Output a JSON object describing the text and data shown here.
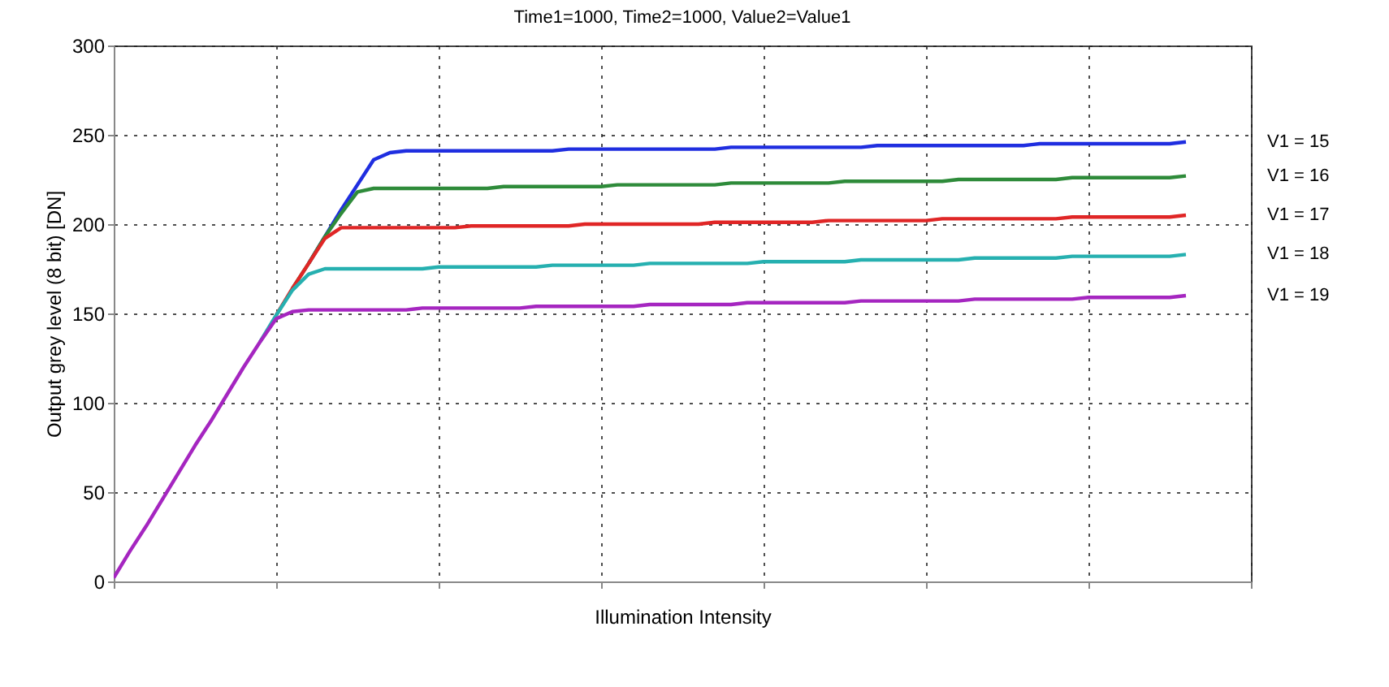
{
  "chart_data": {
    "type": "line",
    "title": "Time1=1000, Time2=1000, Value2=Value1",
    "xlabel": "Illumination Intensity",
    "ylabel": "Output grey level (8 bit) [DN]",
    "categories": [
      null,
      null,
      null,
      null,
      null,
      null,
      null,
      null,
      null,
      null,
      null,
      null,
      null,
      null,
      null,
      null,
      null,
      null,
      null,
      null,
      null,
      null,
      null,
      null,
      null,
      null,
      null,
      null,
      null,
      null,
      null,
      null,
      null,
      null,
      null,
      null,
      null,
      null,
      null,
      null,
      null,
      null,
      null,
      null,
      null,
      null,
      null,
      null,
      null,
      null,
      null,
      null,
      null,
      null,
      null,
      null,
      null,
      null,
      null,
      null,
      null,
      null,
      null,
      null,
      null,
      null,
      null,
      null,
      null,
      null,
      null
    ],
    "series": [
      {
        "name": "V1 = 15",
        "color": "#1f2ee0",
        "values": [
          null,
          null,
          null,
          null,
          null,
          null,
          null,
          null,
          null,
          null,
          null,
          null,
          178,
          193,
          208,
          222,
          236,
          240,
          241,
          241,
          241,
          241,
          241,
          241,
          241,
          241,
          241,
          241,
          242,
          242,
          242,
          242,
          242,
          242,
          242,
          242,
          242,
          242,
          243,
          243,
          243,
          243,
          243,
          243,
          243,
          243,
          243,
          244,
          244,
          244,
          244,
          244,
          244,
          244,
          244,
          244,
          244,
          245,
          245,
          245,
          245,
          245,
          245,
          245,
          245,
          245,
          246,
          null,
          null,
          null,
          null
        ]
      },
      {
        "name": "V1 = 16",
        "color": "#2e8b3a",
        "values": [
          null,
          null,
          null,
          null,
          null,
          null,
          null,
          null,
          null,
          null,
          null,
          164,
          178,
          193,
          206,
          218,
          220,
          220,
          220,
          220,
          220,
          220,
          220,
          220,
          221,
          221,
          221,
          221,
          221,
          221,
          221,
          222,
          222,
          222,
          222,
          222,
          222,
          222,
          223,
          223,
          223,
          223,
          223,
          223,
          223,
          224,
          224,
          224,
          224,
          224,
          224,
          224,
          225,
          225,
          225,
          225,
          225,
          225,
          225,
          226,
          226,
          226,
          226,
          226,
          226,
          226,
          227,
          null,
          null,
          null,
          null
        ]
      },
      {
        "name": "V1 = 17",
        "color": "#e02626",
        "values": [
          null,
          null,
          null,
          null,
          null,
          null,
          null,
          null,
          null,
          null,
          149,
          164,
          178,
          192,
          198,
          198,
          198,
          198,
          198,
          198,
          198,
          198,
          199,
          199,
          199,
          199,
          199,
          199,
          199,
          200,
          200,
          200,
          200,
          200,
          200,
          200,
          200,
          201,
          201,
          201,
          201,
          201,
          201,
          201,
          202,
          202,
          202,
          202,
          202,
          202,
          202,
          203,
          203,
          203,
          203,
          203,
          203,
          203,
          203,
          204,
          204,
          204,
          204,
          204,
          204,
          204,
          205,
          null,
          null,
          null,
          null
        ]
      },
      {
        "name": "V1 = 18",
        "color": "#26b0b0",
        "values": [
          null,
          null,
          null,
          null,
          null,
          null,
          null,
          null,
          null,
          134,
          149,
          163,
          172,
          175,
          175,
          175,
          175,
          175,
          175,
          175,
          176,
          176,
          176,
          176,
          176,
          176,
          176,
          177,
          177,
          177,
          177,
          177,
          177,
          178,
          178,
          178,
          178,
          178,
          178,
          178,
          179,
          179,
          179,
          179,
          179,
          179,
          180,
          180,
          180,
          180,
          180,
          180,
          180,
          181,
          181,
          181,
          181,
          181,
          181,
          182,
          182,
          182,
          182,
          182,
          182,
          182,
          183,
          null,
          null,
          null,
          null
        ]
      },
      {
        "name": "V1 = 19",
        "color": "#a526c0",
        "values": [
          2,
          17,
          31,
          46,
          61,
          76,
          90,
          105,
          120,
          134,
          147,
          151,
          152,
          152,
          152,
          152,
          152,
          152,
          152,
          153,
          153,
          153,
          153,
          153,
          153,
          153,
          154,
          154,
          154,
          154,
          154,
          154,
          154,
          155,
          155,
          155,
          155,
          155,
          155,
          156,
          156,
          156,
          156,
          156,
          156,
          156,
          157,
          157,
          157,
          157,
          157,
          157,
          157,
          158,
          158,
          158,
          158,
          158,
          158,
          158,
          159,
          159,
          159,
          159,
          159,
          159,
          160,
          null,
          null,
          null,
          null
        ]
      }
    ],
    "ylim": [
      0,
      300
    ],
    "yticks": [
      0,
      50,
      100,
      150,
      200,
      250,
      300
    ],
    "grid": true,
    "legend": false
  }
}
